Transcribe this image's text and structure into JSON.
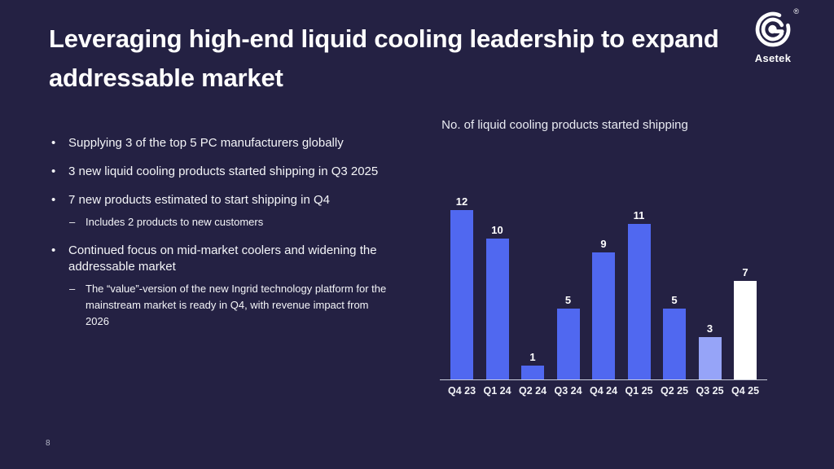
{
  "slide": {
    "title": "Leveraging high-end liquid cooling leadership to expand addressable market",
    "page_number": "8",
    "background_color": "#242143",
    "text_color": "#ffffff"
  },
  "logo": {
    "brand": "Asetek",
    "registered_mark": "®",
    "icon": "asetek-spiral-a-mark",
    "color": "#ffffff"
  },
  "bullets": [
    {
      "level": 1,
      "text": "Supplying 3 of the top 5 PC manufacturers globally"
    },
    {
      "level": 1,
      "text": "3 new liquid cooling products started shipping in Q3 2025"
    },
    {
      "level": 1,
      "text": "7 new products estimated to start shipping in Q4"
    },
    {
      "level": 2,
      "text": "Includes 2 products to new customers"
    },
    {
      "level": 1,
      "text": "Continued focus on mid-market coolers and widening the addressable market"
    },
    {
      "level": 2,
      "text": "The “value”-version of the new Ingrid technology platform for the mainstream  market is ready in Q4, with revenue impact from 2026"
    }
  ],
  "chart_data": {
    "type": "bar",
    "title": "No. of liquid cooling products started shipping",
    "categories": [
      "Q4 23",
      "Q1 24",
      "Q2 24",
      "Q3 24",
      "Q4 24",
      "Q1 25",
      "Q2 25",
      "Q3 25",
      "Q4 25"
    ],
    "values": [
      12,
      10,
      1,
      5,
      9,
      11,
      5,
      3,
      7
    ],
    "bar_colors": [
      "#5068f0",
      "#5068f0",
      "#5068f0",
      "#5068f0",
      "#5068f0",
      "#5068f0",
      "#5068f0",
      "#96a4f8",
      "#ffffff"
    ],
    "ylim": [
      0,
      12
    ],
    "xlabel": "",
    "ylabel": "",
    "grid": false,
    "data_labels": true,
    "legend": "none",
    "axis_line_color": "#c9ccd9"
  }
}
